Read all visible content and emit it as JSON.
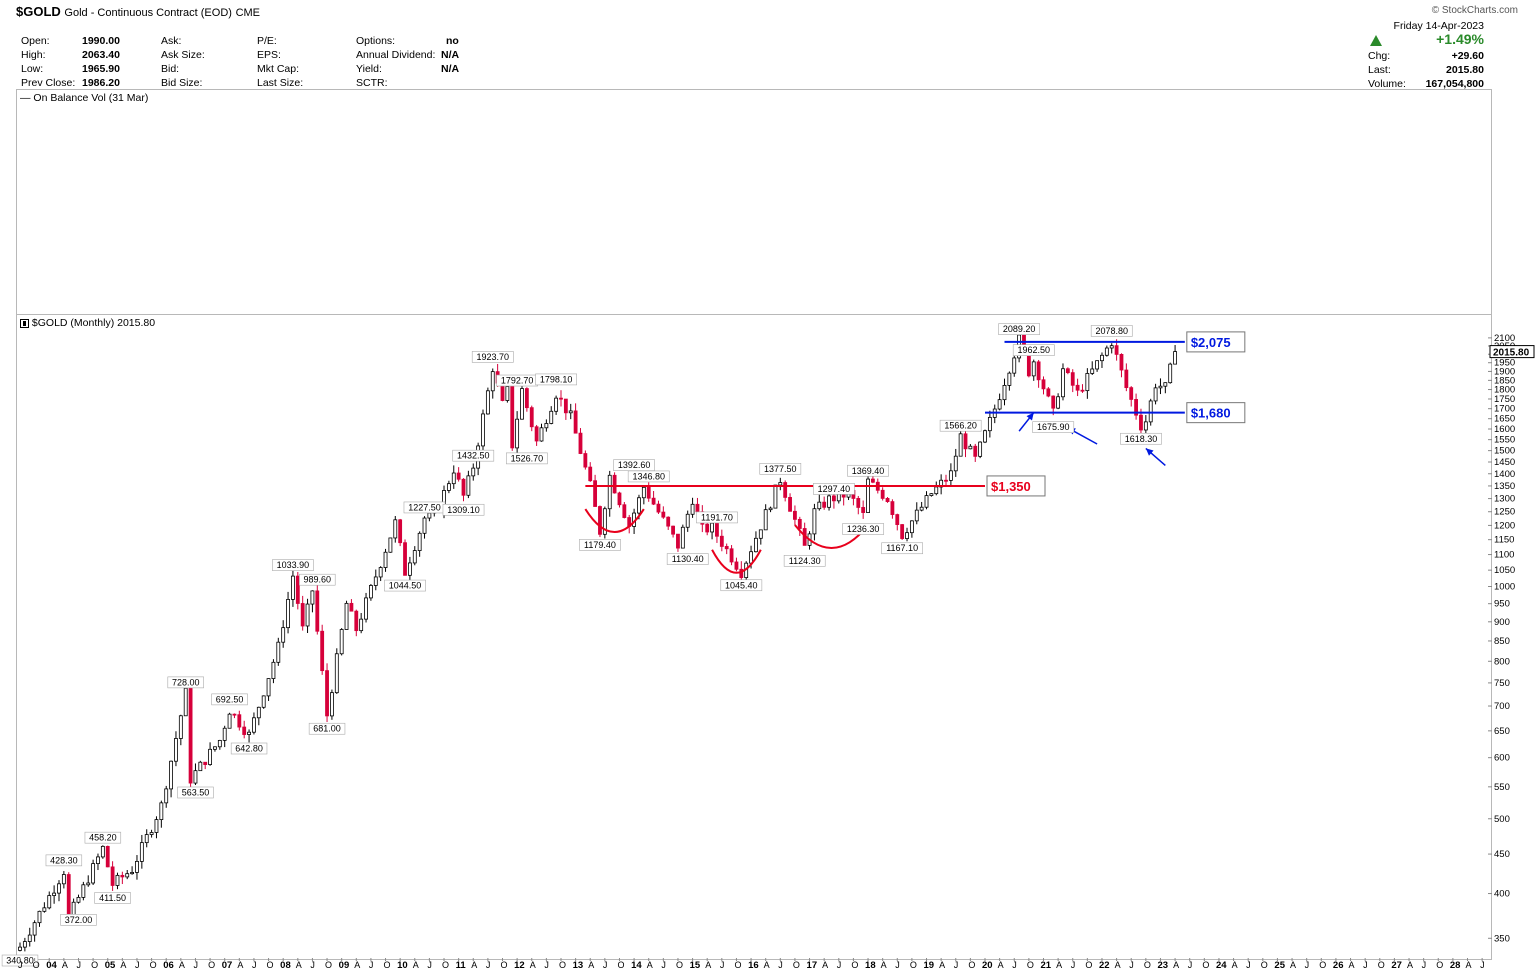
{
  "header": {
    "symbol": "$GOLD",
    "name": "Gold - Continuous Contract (EOD)",
    "exchange": "CME",
    "brand": "© StockCharts.com",
    "date": "Friday 14-Apr-2023",
    "chg_pct": "+1.49%",
    "chg": "+29.60",
    "last": "2015.80",
    "volume": "167,054,800",
    "quote_labels": {
      "col1": [
        "Open:",
        "High:",
        "Low:",
        "Prev Close:"
      ],
      "col2": [
        "Ask:",
        "Ask Size:",
        "Bid:",
        "Bid Size:"
      ],
      "col3": [
        "P/E:",
        "EPS:",
        "Mkt Cap:",
        "Last Size:"
      ],
      "col4": [
        "Options:",
        "Annual Dividend:",
        "Yield:",
        "SCTR:"
      ],
      "right": [
        "Chg:",
        "Last:",
        "Volume:"
      ]
    },
    "quote_values": {
      "col1": [
        "1990.00",
        "2063.40",
        "1965.90",
        "1986.20"
      ],
      "col4": [
        "no",
        "N/A",
        "N/A",
        ""
      ]
    }
  },
  "indicator_pane": {
    "label": "— On Balance Vol (31 Mar)"
  },
  "price_pane": {
    "label": "$GOLD (Monthly) 2015.80",
    "last_tag": "2015.80"
  },
  "colors": {
    "up": "#000000",
    "down": "#d6003a",
    "support": "#e8001c",
    "range": "#0019e0"
  },
  "chart_data": {
    "type": "candlestick",
    "scale": "log",
    "ylim": [
      330,
      2150
    ],
    "y_ticks": [
      350,
      400,
      450,
      500,
      550,
      600,
      650,
      700,
      750,
      800,
      850,
      900,
      950,
      1000,
      1050,
      1100,
      1150,
      1200,
      1250,
      1300,
      1350,
      1400,
      1450,
      1500,
      1550,
      1600,
      1650,
      1700,
      1750,
      1800,
      1850,
      1900,
      1950,
      2000,
      2050,
      2100
    ],
    "x_range": [
      "2003-07",
      "2028-08"
    ],
    "year_labels": [
      "04",
      "05",
      "06",
      "07",
      "08",
      "09",
      "10",
      "11",
      "12",
      "13",
      "14",
      "15",
      "16",
      "17",
      "18",
      "19",
      "20",
      "21",
      "22",
      "23",
      "24",
      "25",
      "26",
      "27",
      "28"
    ],
    "month_labels": [
      "J",
      "A",
      "J",
      "O"
    ],
    "anchors": [
      [
        "2003-07",
        341
      ],
      [
        "2004-04",
        428
      ],
      [
        "2004-05",
        372
      ],
      [
        "2004-12",
        458
      ],
      [
        "2005-02",
        411
      ],
      [
        "2005-06",
        430
      ],
      [
        "2005-12",
        520
      ],
      [
        "2006-05",
        728
      ],
      [
        "2006-06",
        563
      ],
      [
        "2006-12",
        632
      ],
      [
        "2007-02",
        692
      ],
      [
        "2007-06",
        642
      ],
      [
        "2007-12",
        835
      ],
      [
        "2008-03",
        1033
      ],
      [
        "2008-05",
        880
      ],
      [
        "2008-07",
        989
      ],
      [
        "2008-10",
        681
      ],
      [
        "2009-02",
        950
      ],
      [
        "2009-04",
        880
      ],
      [
        "2009-12",
        1210
      ],
      [
        "2010-02",
        1044
      ],
      [
        "2010-06",
        1227
      ],
      [
        "2010-08",
        1230
      ],
      [
        "2010-12",
        1420
      ],
      [
        "2011-02",
        1309
      ],
      [
        "2011-04",
        1432
      ],
      [
        "2011-08",
        1923
      ],
      [
        "2011-10",
        1720
      ],
      [
        "2011-11",
        1792
      ],
      [
        "2011-12",
        1526
      ],
      [
        "2012-02",
        1798
      ],
      [
        "2012-05",
        1540
      ],
      [
        "2012-09",
        1780
      ],
      [
        "2012-12",
        1660
      ],
      [
        "2013-04",
        1350
      ],
      [
        "2013-06",
        1179
      ],
      [
        "2013-08",
        1392
      ],
      [
        "2013-12",
        1200
      ],
      [
        "2014-03",
        1346
      ],
      [
        "2014-10",
        1130
      ],
      [
        "2015-01",
        1300
      ],
      [
        "2015-03",
        1185
      ],
      [
        "2015-05",
        1191
      ],
      [
        "2015-11",
        1045
      ],
      [
        "2016-07",
        1377
      ],
      [
        "2016-12",
        1124
      ],
      [
        "2017-02",
        1250
      ],
      [
        "2017-05",
        1297
      ],
      [
        "2017-09",
        1320
      ],
      [
        "2017-12",
        1236
      ],
      [
        "2018-01",
        1369
      ],
      [
        "2018-05",
        1300
      ],
      [
        "2018-08",
        1167
      ],
      [
        "2019-02",
        1320
      ],
      [
        "2019-06",
        1400
      ],
      [
        "2019-08",
        1566
      ],
      [
        "2019-11",
        1460
      ],
      [
        "2020-03",
        1700
      ],
      [
        "2020-08",
        2089
      ],
      [
        "2020-10",
        1900
      ],
      [
        "2020-11",
        1962
      ],
      [
        "2021-03",
        1675
      ],
      [
        "2021-05",
        1910
      ],
      [
        "2021-08",
        1780
      ],
      [
        "2022-03",
        2078
      ],
      [
        "2022-06",
        1810
      ],
      [
        "2022-09",
        1618
      ],
      [
        "2022-10",
        1640
      ],
      [
        "2022-12",
        1830
      ],
      [
        "2023-02",
        1810
      ],
      [
        "2023-04",
        2015.8
      ]
    ],
    "levels": [
      {
        "label": "$1,350",
        "value": 1350,
        "from": "2013-03",
        "to": "2020-01",
        "color": "#e8001c"
      },
      {
        "label": "$2,075",
        "value": 2075,
        "from": "2020-05",
        "to": "2023-06",
        "color": "#0019e0"
      },
      {
        "label": "$1,680",
        "value": 1680,
        "from": "2020-01",
        "to": "2023-06",
        "color": "#0019e0"
      }
    ],
    "annotations": [
      {
        "t": "2003-07",
        "v": 341,
        "text": "340.80",
        "pos": "below"
      },
      {
        "t": "2004-04",
        "v": 428,
        "text": "428.30",
        "pos": "above"
      },
      {
        "t": "2004-07",
        "v": 385,
        "text": "372.00",
        "pos": "below"
      },
      {
        "t": "2004-12",
        "v": 458,
        "text": "458.20",
        "pos": "above"
      },
      {
        "t": "2005-02",
        "v": 411,
        "text": "411.50",
        "pos": "below"
      },
      {
        "t": "2006-05",
        "v": 728,
        "text": "728.00",
        "pos": "above"
      },
      {
        "t": "2006-07",
        "v": 563,
        "text": "563.50",
        "pos": "below"
      },
      {
        "t": "2007-02",
        "v": 692,
        "text": "692.50",
        "pos": "above"
      },
      {
        "t": "2007-06",
        "v": 642,
        "text": "642.80",
        "pos": "below"
      },
      {
        "t": "2008-03",
        "v": 1033,
        "text": "1033.90",
        "pos": "above"
      },
      {
        "t": "2008-08",
        "v": 989,
        "text": "989.60",
        "pos": "above"
      },
      {
        "t": "2008-10",
        "v": 681,
        "text": "681.00",
        "pos": "below"
      },
      {
        "t": "2010-02",
        "v": 1044,
        "text": "1044.50",
        "pos": "below"
      },
      {
        "t": "2010-06",
        "v": 1227,
        "text": "1227.50",
        "pos": "above"
      },
      {
        "t": "2011-02",
        "v": 1309,
        "text": "1309.10",
        "pos": "below"
      },
      {
        "t": "2011-04",
        "v": 1432,
        "text": "1432.50",
        "pos": "above"
      },
      {
        "t": "2011-08",
        "v": 1923,
        "text": "1923.70",
        "pos": "above"
      },
      {
        "t": "2012-01",
        "v": 1792,
        "text": "1792.70",
        "pos": "above"
      },
      {
        "t": "2012-03",
        "v": 1526,
        "text": "1526.70",
        "pos": "below"
      },
      {
        "t": "2012-09",
        "v": 1798,
        "text": "1798.10",
        "pos": "above"
      },
      {
        "t": "2013-06",
        "v": 1179,
        "text": "1179.40",
        "pos": "below"
      },
      {
        "t": "2014-01",
        "v": 1392,
        "text": "1392.60",
        "pos": "above"
      },
      {
        "t": "2014-04",
        "v": 1346,
        "text": "1346.80",
        "pos": "above"
      },
      {
        "t": "2014-12",
        "v": 1130,
        "text": "1130.40",
        "pos": "below"
      },
      {
        "t": "2015-06",
        "v": 1191,
        "text": "1191.70",
        "pos": "above"
      },
      {
        "t": "2015-11",
        "v": 1045,
        "text": "1045.40",
        "pos": "below"
      },
      {
        "t": "2016-07",
        "v": 1377,
        "text": "1377.50",
        "pos": "above"
      },
      {
        "t": "2016-12",
        "v": 1124,
        "text": "1124.30",
        "pos": "below"
      },
      {
        "t": "2017-06",
        "v": 1297,
        "text": "1297.40",
        "pos": "above"
      },
      {
        "t": "2017-12",
        "v": 1236,
        "text": "1236.30",
        "pos": "below"
      },
      {
        "t": "2018-01",
        "v": 1369,
        "text": "1369.40",
        "pos": "above"
      },
      {
        "t": "2018-08",
        "v": 1167,
        "text": "1167.10",
        "pos": "below"
      },
      {
        "t": "2019-08",
        "v": 1566,
        "text": "1566.20",
        "pos": "above"
      },
      {
        "t": "2020-08",
        "v": 2089,
        "text": "2089.20",
        "pos": "above"
      },
      {
        "t": "2020-11",
        "v": 1962,
        "text": "1962.50",
        "pos": "above"
      },
      {
        "t": "2021-03",
        "v": 1675,
        "text": "1675.90",
        "pos": "below"
      },
      {
        "t": "2022-03",
        "v": 2078,
        "text": "2078.80",
        "pos": "above"
      },
      {
        "t": "2022-09",
        "v": 1618,
        "text": "1618.30",
        "pos": "below"
      }
    ],
    "cups": [
      {
        "from": "2013-03",
        "to": "2014-03",
        "v": 1180
      },
      {
        "from": "2015-05",
        "to": "2016-03",
        "v": 1045
      },
      {
        "from": "2016-10",
        "to": "2018-01",
        "v": 1125
      }
    ],
    "arrows": [
      {
        "from": [
          "2020-08",
          1590
        ],
        "to": [
          "2020-11",
          1680
        ]
      },
      {
        "from": [
          "2021-12",
          1530
        ],
        "to": [
          "2021-06",
          1605
        ]
      },
      {
        "from": [
          "2023-02",
          1435
        ],
        "to": [
          "2022-10",
          1510
        ]
      }
    ]
  }
}
